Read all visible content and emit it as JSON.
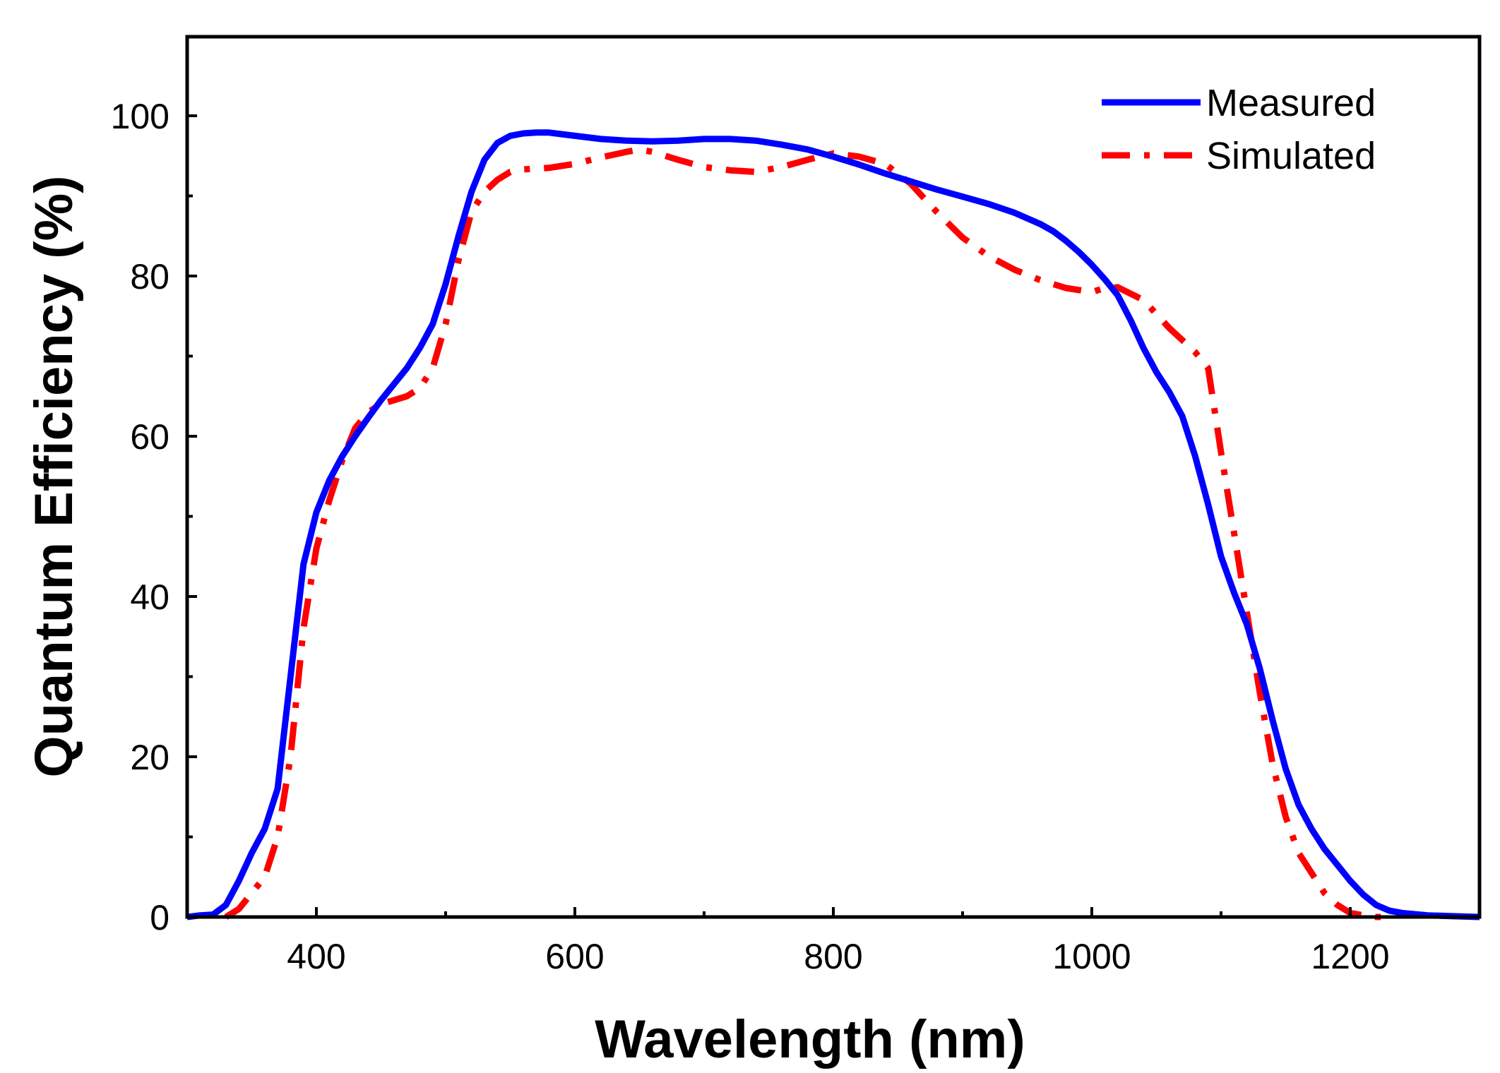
{
  "chart_data": {
    "type": "line",
    "title": "",
    "xlabel": "Wavelength (nm)",
    "ylabel": "Quantum Efficiency (%)",
    "xlim": [
      300,
      1300
    ],
    "ylim": [
      0,
      110
    ],
    "x_ticks": [
      400,
      600,
      800,
      1000,
      1200
    ],
    "x_tick_labels": [
      "400",
      "600",
      "800",
      "1000",
      "1200"
    ],
    "y_ticks": [
      0,
      20,
      40,
      60,
      80,
      100
    ],
    "y_tick_labels": [
      "0",
      "20",
      "40",
      "60",
      "80",
      "100"
    ],
    "x_minor_ticks": [
      300,
      500,
      700,
      900,
      1100,
      1300
    ],
    "y_minor_ticks": [
      10,
      30,
      50,
      70,
      90
    ],
    "grid": false,
    "legend_position": "top-right",
    "series": [
      {
        "name": "Measured",
        "color": "#0000ff",
        "style": "solid",
        "x": [
          300,
          310,
          320,
          330,
          340,
          350,
          360,
          370,
          380,
          390,
          400,
          410,
          420,
          430,
          440,
          450,
          460,
          470,
          480,
          490,
          500,
          510,
          520,
          530,
          540,
          550,
          560,
          570,
          580,
          590,
          600,
          620,
          640,
          660,
          680,
          700,
          720,
          740,
          760,
          780,
          800,
          820,
          840,
          860,
          880,
          900,
          920,
          940,
          960,
          970,
          980,
          990,
          1000,
          1010,
          1020,
          1030,
          1040,
          1050,
          1060,
          1070,
          1080,
          1090,
          1100,
          1110,
          1120,
          1130,
          1140,
          1150,
          1160,
          1170,
          1180,
          1190,
          1200,
          1210,
          1220,
          1230,
          1240,
          1260,
          1280,
          1300
        ],
        "y": [
          0,
          0.2,
          0.3,
          1.5,
          4.5,
          8,
          11,
          16,
          30,
          44,
          50.5,
          54.5,
          57.5,
          60,
          62.3,
          64.5,
          66.5,
          68.5,
          71,
          74,
          79,
          85,
          90.5,
          94.5,
          96.6,
          97.5,
          97.8,
          97.9,
          97.9,
          97.7,
          97.5,
          97.1,
          96.9,
          96.8,
          96.9,
          97.1,
          97.1,
          96.9,
          96.4,
          95.8,
          94.9,
          93.9,
          92.8,
          91.8,
          90.8,
          89.9,
          89,
          87.9,
          86.5,
          85.6,
          84.4,
          83,
          81.4,
          79.6,
          77.6,
          74.5,
          71,
          68,
          65.5,
          62.5,
          57.5,
          51.5,
          45,
          40.5,
          36.5,
          31,
          24.5,
          18.5,
          14,
          11,
          8.5,
          6.5,
          4.5,
          2.8,
          1.5,
          0.8,
          0.5,
          0.2,
          0.1,
          0
        ]
      },
      {
        "name": "Simulated",
        "color": "#ff0000",
        "style": "dash-dot",
        "x": [
          330,
          340,
          350,
          360,
          370,
          380,
          390,
          400,
          410,
          420,
          430,
          440,
          450,
          460,
          470,
          480,
          490,
          500,
          510,
          520,
          530,
          540,
          550,
          560,
          580,
          600,
          620,
          640,
          650,
          660,
          680,
          700,
          720,
          740,
          760,
          780,
          800,
          820,
          840,
          860,
          880,
          900,
          920,
          940,
          960,
          980,
          1000,
          1010,
          1020,
          1040,
          1060,
          1080,
          1090,
          1100,
          1110,
          1120,
          1130,
          1140,
          1150,
          1160,
          1170,
          1180,
          1190,
          1200,
          1210,
          1220,
          1230
        ],
        "y": [
          0,
          1,
          3,
          5,
          10,
          20,
          36,
          46,
          52,
          57,
          61,
          63,
          64,
          64.5,
          65,
          66,
          68.5,
          74,
          82,
          88,
          90.5,
          92,
          93,
          93.3,
          93.5,
          94,
          94.8,
          95.5,
          95.8,
          95.5,
          94.5,
          93.6,
          93.2,
          93,
          93.6,
          94.5,
          95.3,
          94.9,
          94,
          91.5,
          88,
          84.8,
          82.5,
          80.8,
          79.5,
          78.5,
          78,
          78.5,
          78.6,
          77,
          73.5,
          70.5,
          68.5,
          58,
          48,
          38,
          28,
          19,
          12.5,
          8,
          5.5,
          3,
          1.5,
          0.5,
          0.2,
          0,
          0
        ]
      }
    ]
  }
}
